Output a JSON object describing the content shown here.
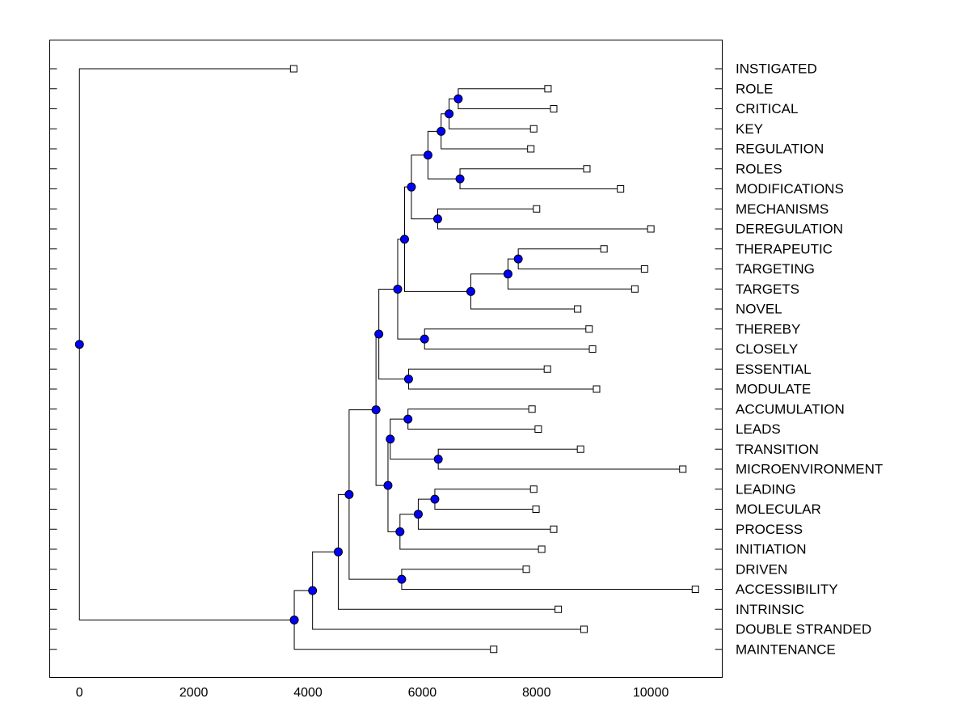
{
  "chart_data": {
    "type": "dendrogram",
    "title": "",
    "xlabel": "",
    "ylabel": "",
    "xlim": [
      -520,
      11250
    ],
    "x_ticks": [
      0,
      2000,
      4000,
      6000,
      8000,
      10000
    ],
    "x_tick_labels": [
      "0",
      "2000",
      "4000",
      "6000",
      "8000",
      "10000"
    ],
    "colors": {
      "node": "#0000ff",
      "line": "#000000",
      "leaf_fill": "#ffffff"
    },
    "leaves": [
      {
        "label": "INSTIGATED",
        "value": 3750
      },
      {
        "label": "ROLE",
        "value": 8200
      },
      {
        "label": "CRITICAL",
        "value": 8300
      },
      {
        "label": "KEY",
        "value": 7950
      },
      {
        "label": "REGULATION",
        "value": 7900
      },
      {
        "label": "ROLES",
        "value": 8880
      },
      {
        "label": "MODIFICATIONS",
        "value": 9470
      },
      {
        "label": "MECHANISMS",
        "value": 8000
      },
      {
        "label": "DEREGULATION",
        "value": 10000
      },
      {
        "label": "THERAPEUTIC",
        "value": 9180
      },
      {
        "label": "TARGETING",
        "value": 9890
      },
      {
        "label": "TARGETS",
        "value": 9720
      },
      {
        "label": "NOVEL",
        "value": 8720
      },
      {
        "label": "THEREBY",
        "value": 8920
      },
      {
        "label": "CLOSELY",
        "value": 8980
      },
      {
        "label": "ESSENTIAL",
        "value": 8190
      },
      {
        "label": "MODULATE",
        "value": 9050
      },
      {
        "label": "ACCUMULATION",
        "value": 7920
      },
      {
        "label": "LEADS",
        "value": 8030
      },
      {
        "label": "TRANSITION",
        "value": 8770
      },
      {
        "label": "MICROENVIRONMENT",
        "value": 10560
      },
      {
        "label": "LEADING",
        "value": 7950
      },
      {
        "label": "MOLECULAR",
        "value": 7990
      },
      {
        "label": "PROCESS",
        "value": 8300
      },
      {
        "label": "INITIATION",
        "value": 8090
      },
      {
        "label": "DRIVEN",
        "value": 7820
      },
      {
        "label": "ACCESSIBILITY",
        "value": 10780
      },
      {
        "label": "INTRINSIC",
        "value": 8380
      },
      {
        "label": "DOUBLE STRANDED",
        "value": 8830
      },
      {
        "label": "MAINTENANCE",
        "value": 7250
      }
    ],
    "merges": [
      {
        "children": [
          "L1",
          "L2"
        ],
        "value": 6630
      },
      {
        "children": [
          "M0",
          "L3"
        ],
        "value": 6470
      },
      {
        "children": [
          "M1",
          "L4"
        ],
        "value": 6330
      },
      {
        "children": [
          "L5",
          "L6"
        ],
        "value": 6660
      },
      {
        "children": [
          "M2",
          "M3"
        ],
        "value": 6100
      },
      {
        "children": [
          "L7",
          "L8"
        ],
        "value": 6270
      },
      {
        "children": [
          "M4",
          "M5"
        ],
        "value": 5810
      },
      {
        "children": [
          "L9",
          "L10"
        ],
        "value": 7680
      },
      {
        "children": [
          "M7",
          "L11"
        ],
        "value": 7500
      },
      {
        "children": [
          "M8",
          "L12"
        ],
        "value": 6850
      },
      {
        "children": [
          "M6",
          "M9"
        ],
        "value": 5690
      },
      {
        "children": [
          "L13",
          "L14"
        ],
        "value": 6040
      },
      {
        "children": [
          "M10",
          "M11"
        ],
        "value": 5570
      },
      {
        "children": [
          "L15",
          "L16"
        ],
        "value": 5760
      },
      {
        "children": [
          "M12",
          "M13"
        ],
        "value": 5240
      },
      {
        "children": [
          "L17",
          "L18"
        ],
        "value": 5750
      },
      {
        "children": [
          "L19",
          "L20"
        ],
        "value": 6280
      },
      {
        "children": [
          "M15",
          "M16"
        ],
        "value": 5440
      },
      {
        "children": [
          "L21",
          "L22"
        ],
        "value": 6220
      },
      {
        "children": [
          "M18",
          "L23"
        ],
        "value": 5930
      },
      {
        "children": [
          "M19",
          "L24"
        ],
        "value": 5610
      },
      {
        "children": [
          "M17",
          "M20"
        ],
        "value": 5400
      },
      {
        "children": [
          "M14",
          "M21"
        ],
        "value": 5190
      },
      {
        "children": [
          "L25",
          "L26"
        ],
        "value": 5640
      },
      {
        "children": [
          "M22",
          "M23"
        ],
        "value": 4720
      },
      {
        "children": [
          "M24",
          "L27"
        ],
        "value": 4530
      },
      {
        "children": [
          "M25",
          "L28"
        ],
        "value": 4080
      },
      {
        "children": [
          "M26",
          "L29"
        ],
        "value": 3760
      },
      {
        "children": [
          "L0",
          "M27"
        ],
        "value": 0
      }
    ]
  }
}
